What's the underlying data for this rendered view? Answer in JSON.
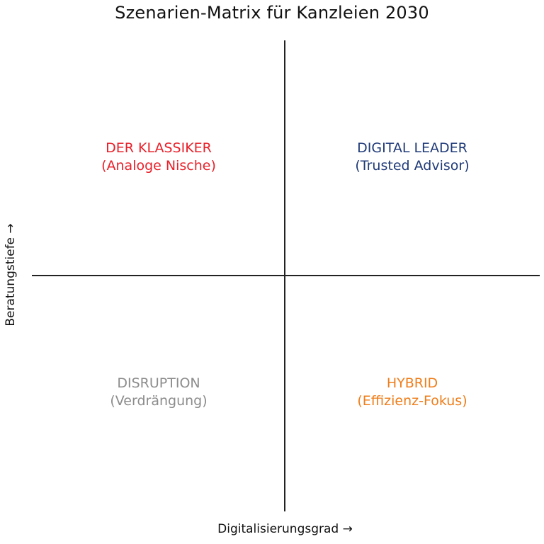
{
  "title": "Szenarien-Matrix für Kanzleien 2030",
  "axes": {
    "x_label": "Digitalisierungsgrad →",
    "y_label": "Beratungstiefe →"
  },
  "quadrants": {
    "top_left": {
      "name": "DER KLASSIKER",
      "subtitle": "(Analoge Nische)",
      "color": "#e8202a"
    },
    "top_right": {
      "name": "DIGITAL LEADER",
      "subtitle": "(Trusted Advisor)",
      "color": "#1f3a78"
    },
    "bottom_left": {
      "name": "DISRUPTION",
      "subtitle": "(Verdrängung)",
      "color": "#8c8c8c"
    },
    "bottom_right": {
      "name": "HYBRID",
      "subtitle": "(Effizienz-Fokus)",
      "color": "#ef7d1a"
    }
  }
}
